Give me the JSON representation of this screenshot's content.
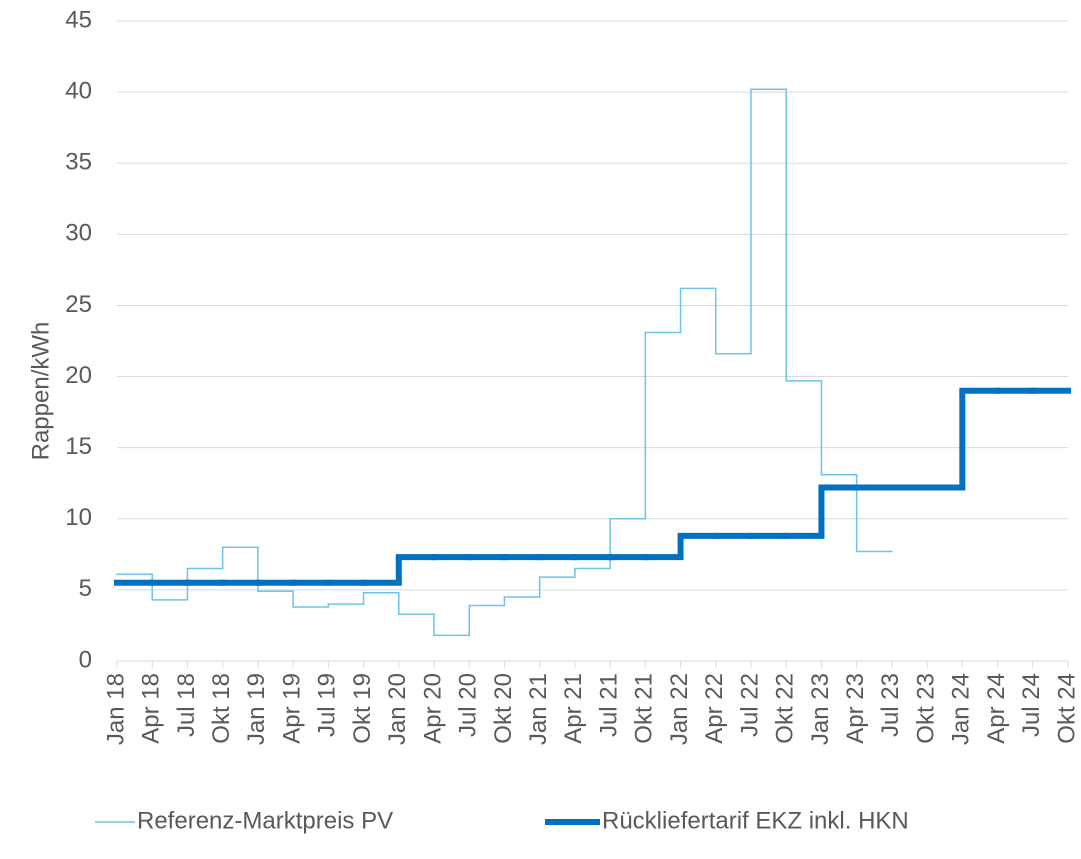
{
  "chart_data": {
    "type": "step-line",
    "y_label": "Rappen/kWh",
    "categories": [
      "Jan 18",
      "Apr 18",
      "Jul 18",
      "Okt 18",
      "Jan 19",
      "Apr 19",
      "Jul 19",
      "Okt 19",
      "Jan 20",
      "Apr 20",
      "Jul 20",
      "Okt 20",
      "Jan 21",
      "Apr 21",
      "Jul 21",
      "Okt 21",
      "Jan 22",
      "Apr 22",
      "Jul 22",
      "Okt 22",
      "Jan 23",
      "Apr 23",
      "Jul 23",
      "Okt 23",
      "Jan 24",
      "Apr 24",
      "Jul 24",
      "Okt 24"
    ],
    "series": [
      {
        "name": "Referenz-Marktpreis PV",
        "color": "#6cc4ea",
        "values": [
          6.1,
          4.3,
          6.5,
          8.0,
          4.9,
          3.8,
          4.0,
          4.8,
          3.3,
          1.8,
          3.9,
          4.5,
          5.9,
          6.5,
          10.0,
          23.1,
          26.2,
          21.6,
          40.2,
          19.7,
          13.1,
          7.7,
          null,
          null,
          null,
          null,
          null,
          null
        ]
      },
      {
        "name": "Rückliefertarif EKZ inkl. HKN",
        "color": "#0070c0",
        "values": [
          5.5,
          5.5,
          5.5,
          5.5,
          5.5,
          5.5,
          5.5,
          5.5,
          7.3,
          7.3,
          7.3,
          7.3,
          7.3,
          7.3,
          7.3,
          7.3,
          8.8,
          8.8,
          8.8,
          8.8,
          12.2,
          12.2,
          12.2,
          12.2,
          19.0,
          19.0,
          19.0,
          null
        ]
      }
    ],
    "ylim": [
      0,
      45
    ],
    "yticks": [
      0,
      5,
      10,
      15,
      20,
      25,
      30,
      35,
      40,
      45
    ],
    "grid": true,
    "legend": "bottom"
  }
}
